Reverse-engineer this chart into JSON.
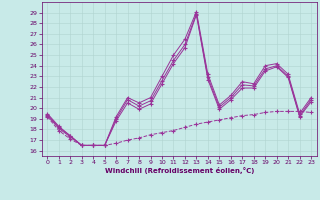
{
  "xlabel": "Windchill (Refroidissement éolien,°C)",
  "bg_color": "#c8eae8",
  "line_color": "#993399",
  "ylim": [
    15.5,
    30.0
  ],
  "xlim": [
    -0.5,
    23.5
  ],
  "yticks": [
    16,
    17,
    18,
    19,
    20,
    21,
    22,
    23,
    24,
    25,
    26,
    27,
    28,
    29
  ],
  "xticks": [
    0,
    1,
    2,
    3,
    4,
    5,
    6,
    7,
    8,
    9,
    10,
    11,
    12,
    13,
    14,
    15,
    16,
    17,
    18,
    19,
    20,
    21,
    22,
    23
  ],
  "line1_x": [
    0,
    1,
    2,
    3,
    4,
    5,
    6,
    7,
    8,
    9,
    10,
    11,
    12,
    13,
    14,
    15,
    16,
    17,
    18,
    19,
    20,
    21,
    22,
    23
  ],
  "line1_y": [
    19.5,
    18.3,
    17.4,
    16.5,
    16.5,
    16.5,
    19.2,
    21.0,
    20.5,
    21.0,
    23.0,
    25.0,
    26.5,
    29.1,
    23.2,
    20.3,
    21.2,
    22.5,
    22.3,
    24.0,
    24.2,
    23.2,
    19.5,
    21.0
  ],
  "line2_x": [
    0,
    1,
    2,
    3,
    4,
    5,
    6,
    7,
    8,
    9,
    10,
    11,
    12,
    13,
    14,
    15,
    16,
    17,
    18,
    19,
    20,
    21,
    22,
    23
  ],
  "line2_y": [
    19.4,
    18.2,
    17.4,
    16.5,
    16.5,
    16.5,
    19.0,
    20.8,
    20.2,
    20.7,
    22.6,
    24.5,
    26.0,
    28.9,
    22.9,
    20.1,
    21.0,
    22.2,
    22.1,
    23.7,
    24.0,
    23.0,
    19.3,
    20.8
  ],
  "line3_x": [
    0,
    1,
    2,
    3,
    4,
    5,
    6,
    7,
    8,
    9,
    10,
    11,
    12,
    13,
    14,
    15,
    16,
    17,
    18,
    19,
    20,
    21,
    22,
    23
  ],
  "line3_y": [
    19.3,
    18.1,
    17.3,
    16.5,
    16.5,
    16.5,
    18.8,
    20.5,
    19.9,
    20.4,
    22.3,
    24.2,
    25.7,
    28.8,
    22.7,
    19.9,
    20.8,
    21.9,
    21.9,
    23.5,
    23.9,
    22.9,
    19.2,
    20.6
  ],
  "line4_x": [
    0,
    1,
    2,
    3,
    4,
    5,
    6,
    7,
    8,
    9,
    10,
    11,
    12,
    13,
    14,
    15,
    16,
    17,
    18,
    19,
    20,
    21,
    22,
    23
  ],
  "line4_y": [
    19.2,
    17.9,
    17.1,
    16.5,
    16.5,
    16.5,
    16.7,
    17.0,
    17.2,
    17.5,
    17.7,
    17.9,
    18.2,
    18.5,
    18.7,
    18.9,
    19.1,
    19.3,
    19.4,
    19.6,
    19.7,
    19.7,
    19.7,
    19.6
  ]
}
